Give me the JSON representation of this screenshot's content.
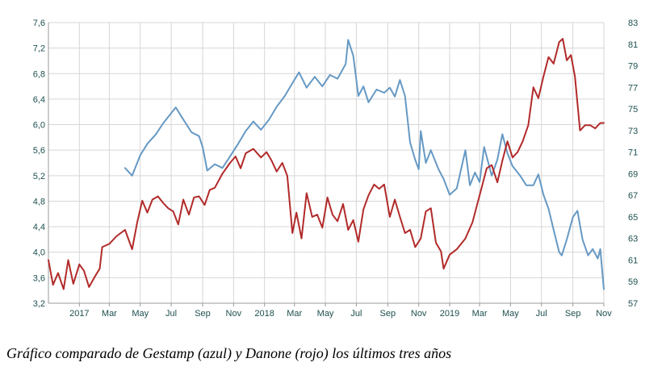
{
  "caption": "Gráfico comparado de Gestamp (azul) y Danone (rojo) los últimos tres años",
  "chart_data": {
    "type": "line",
    "title": "",
    "grid": true,
    "colors": {
      "gestamp": "#6699c4",
      "danone": "#b22a2a",
      "grid": "#d6d6d6",
      "tick_text": "#1d4f4f"
    },
    "x_ticks": [
      "2017",
      "Mar",
      "May",
      "Jul",
      "Sep",
      "Nov",
      "2018",
      "Mar",
      "May",
      "Jul",
      "Sep",
      "Nov",
      "2019",
      "Mar",
      "May",
      "Jul",
      "Sep",
      "Nov"
    ],
    "x_tick_dates": [
      "2017-01",
      "2017-03",
      "2017-05",
      "2017-07",
      "2017-09",
      "2017-11",
      "2018-01",
      "2018-03",
      "2018-05",
      "2018-07",
      "2018-09",
      "2018-11",
      "2019-01",
      "2019-03",
      "2019-05",
      "2019-07",
      "2019-09",
      "2019-11"
    ],
    "x_range": [
      "2016-11",
      "2019-11"
    ],
    "y_left": {
      "ticks": [
        "3,2",
        "3,6",
        "4,0",
        "4,4",
        "4,8",
        "5,2",
        "5,6",
        "6,0",
        "6,4",
        "6,8",
        "7,2",
        "7,6"
      ],
      "range": [
        3.2,
        7.6
      ]
    },
    "y_right": {
      "ticks": [
        "57",
        "59",
        "61",
        "63",
        "65",
        "67",
        "69",
        "71",
        "73",
        "75",
        "77",
        "79",
        "81",
        "83"
      ],
      "range": [
        57,
        83
      ]
    },
    "series": [
      {
        "key": "gestamp",
        "axis": "left",
        "points": [
          [
            "2017-04",
            5.32
          ],
          [
            "2017-04-15",
            5.2
          ],
          [
            "2017-05",
            5.52
          ],
          [
            "2017-05-15",
            5.7
          ],
          [
            "2017-06",
            5.85
          ],
          [
            "2017-06-15",
            6.02
          ],
          [
            "2017-07",
            6.18
          ],
          [
            "2017-07-10",
            6.27
          ],
          [
            "2017-07-25",
            6.08
          ],
          [
            "2017-08-10",
            5.88
          ],
          [
            "2017-08-25",
            5.82
          ],
          [
            "2017-09",
            5.65
          ],
          [
            "2017-09-10",
            5.28
          ],
          [
            "2017-09-25",
            5.38
          ],
          [
            "2017-10-10",
            5.32
          ],
          [
            "2017-10-25",
            5.5
          ],
          [
            "2017-11-10",
            5.7
          ],
          [
            "2017-11-25",
            5.9
          ],
          [
            "2017-12-10",
            6.05
          ],
          [
            "2017-12-25",
            5.92
          ],
          [
            "2018-01-10",
            6.08
          ],
          [
            "2018-01-25",
            6.28
          ],
          [
            "2018-02-10",
            6.45
          ],
          [
            "2018-02-25",
            6.65
          ],
          [
            "2018-03-10",
            6.82
          ],
          [
            "2018-03-25",
            6.58
          ],
          [
            "2018-04-10",
            6.75
          ],
          [
            "2018-04-25",
            6.6
          ],
          [
            "2018-05-10",
            6.78
          ],
          [
            "2018-05-25",
            6.72
          ],
          [
            "2018-06-10",
            6.95
          ],
          [
            "2018-06-15",
            7.33
          ],
          [
            "2018-06-25",
            7.08
          ],
          [
            "2018-07-05",
            6.45
          ],
          [
            "2018-07-15",
            6.6
          ],
          [
            "2018-07-25",
            6.35
          ],
          [
            "2018-08-10",
            6.55
          ],
          [
            "2018-08-25",
            6.5
          ],
          [
            "2018-09-05",
            6.58
          ],
          [
            "2018-09-15",
            6.44
          ],
          [
            "2018-09-25",
            6.7
          ],
          [
            "2018-10-05",
            6.45
          ],
          [
            "2018-10-15",
            5.72
          ],
          [
            "2018-10-25",
            5.45
          ],
          [
            "2018-11-01",
            5.3
          ],
          [
            "2018-11-05",
            5.9
          ],
          [
            "2018-11-15",
            5.4
          ],
          [
            "2018-11-25",
            5.6
          ],
          [
            "2018-12-10",
            5.3
          ],
          [
            "2018-12-20",
            5.15
          ],
          [
            "2019-01-01",
            4.9
          ],
          [
            "2019-01-15",
            5.0
          ],
          [
            "2019-02-01",
            5.6
          ],
          [
            "2019-02-10",
            5.05
          ],
          [
            "2019-02-20",
            5.25
          ],
          [
            "2019-03-01",
            5.1
          ],
          [
            "2019-03-10",
            5.65
          ],
          [
            "2019-03-25",
            5.2
          ],
          [
            "2019-04-05",
            5.45
          ],
          [
            "2019-04-15",
            5.85
          ],
          [
            "2019-04-25",
            5.55
          ],
          [
            "2019-05-05",
            5.35
          ],
          [
            "2019-05-20",
            5.2
          ],
          [
            "2019-06-01",
            5.05
          ],
          [
            "2019-06-15",
            5.05
          ],
          [
            "2019-06-25",
            5.22
          ],
          [
            "2019-07-05",
            4.9
          ],
          [
            "2019-07-15",
            4.68
          ],
          [
            "2019-07-25",
            4.35
          ],
          [
            "2019-08-05",
            4.0
          ],
          [
            "2019-08-10",
            3.95
          ],
          [
            "2019-08-20",
            4.2
          ],
          [
            "2019-09-01",
            4.55
          ],
          [
            "2019-09-10",
            4.65
          ],
          [
            "2019-09-20",
            4.2
          ],
          [
            "2019-10-01",
            3.95
          ],
          [
            "2019-10-10",
            4.05
          ],
          [
            "2019-10-20",
            3.9
          ],
          [
            "2019-10-25",
            4.05
          ],
          [
            "2019-11-01",
            3.42
          ]
        ]
      },
      {
        "key": "danone",
        "axis": "right",
        "points": [
          [
            "2016-11-01",
            61.0
          ],
          [
            "2016-11-10",
            58.7
          ],
          [
            "2016-11-20",
            59.8
          ],
          [
            "2016-12-01",
            58.3
          ],
          [
            "2016-12-10",
            61.0
          ],
          [
            "2016-12-20",
            58.8
          ],
          [
            "2017-01-01",
            60.6
          ],
          [
            "2017-01-10",
            60.0
          ],
          [
            "2017-01-20",
            58.5
          ],
          [
            "2017-02-01",
            59.5
          ],
          [
            "2017-02-10",
            60.2
          ],
          [
            "2017-02-15",
            62.2
          ],
          [
            "2017-03-01",
            62.5
          ],
          [
            "2017-03-15",
            63.2
          ],
          [
            "2017-04-01",
            63.8
          ],
          [
            "2017-04-15",
            62.0
          ],
          [
            "2017-04-25",
            64.5
          ],
          [
            "2017-05-05",
            66.5
          ],
          [
            "2017-05-15",
            65.4
          ],
          [
            "2017-05-25",
            66.6
          ],
          [
            "2017-06-05",
            66.9
          ],
          [
            "2017-06-15",
            66.3
          ],
          [
            "2017-06-25",
            65.8
          ],
          [
            "2017-07-05",
            65.5
          ],
          [
            "2017-07-15",
            64.3
          ],
          [
            "2017-07-25",
            66.6
          ],
          [
            "2017-08-05",
            65.2
          ],
          [
            "2017-08-15",
            66.8
          ],
          [
            "2017-08-25",
            66.9
          ],
          [
            "2017-09-05",
            66.1
          ],
          [
            "2017-09-15",
            67.5
          ],
          [
            "2017-09-25",
            67.7
          ],
          [
            "2017-10-10",
            69.0
          ],
          [
            "2017-10-25",
            70.0
          ],
          [
            "2017-11-05",
            70.6
          ],
          [
            "2017-11-15",
            69.5
          ],
          [
            "2017-11-25",
            70.9
          ],
          [
            "2017-12-10",
            71.3
          ],
          [
            "2017-12-25",
            70.5
          ],
          [
            "2018-01-05",
            71.0
          ],
          [
            "2018-01-15",
            70.2
          ],
          [
            "2018-01-25",
            69.2
          ],
          [
            "2018-02-05",
            70.0
          ],
          [
            "2018-02-15",
            68.8
          ],
          [
            "2018-02-25",
            63.5
          ],
          [
            "2018-03-05",
            65.4
          ],
          [
            "2018-03-15",
            63.0
          ],
          [
            "2018-03-25",
            67.2
          ],
          [
            "2018-04-05",
            65.0
          ],
          [
            "2018-04-15",
            65.2
          ],
          [
            "2018-04-25",
            64.0
          ],
          [
            "2018-05-05",
            66.8
          ],
          [
            "2018-05-15",
            65.2
          ],
          [
            "2018-05-25",
            64.6
          ],
          [
            "2018-06-05",
            66.2
          ],
          [
            "2018-06-15",
            63.8
          ],
          [
            "2018-06-25",
            64.7
          ],
          [
            "2018-07-05",
            62.7
          ],
          [
            "2018-07-15",
            65.7
          ],
          [
            "2018-07-25",
            67.0
          ],
          [
            "2018-08-05",
            68.0
          ],
          [
            "2018-08-15",
            67.6
          ],
          [
            "2018-08-25",
            68.0
          ],
          [
            "2018-09-05",
            65.0
          ],
          [
            "2018-09-15",
            66.6
          ],
          [
            "2018-09-25",
            65.0
          ],
          [
            "2018-10-05",
            63.5
          ],
          [
            "2018-10-15",
            63.8
          ],
          [
            "2018-10-25",
            62.2
          ],
          [
            "2018-11-05",
            63.0
          ],
          [
            "2018-11-15",
            65.5
          ],
          [
            "2018-11-25",
            65.8
          ],
          [
            "2018-12-05",
            62.6
          ],
          [
            "2018-12-15",
            61.8
          ],
          [
            "2018-12-20",
            60.2
          ],
          [
            "2019-01-01",
            61.5
          ],
          [
            "2019-01-15",
            62.0
          ],
          [
            "2019-02-01",
            63.0
          ],
          [
            "2019-02-15",
            64.5
          ],
          [
            "2019-03-01",
            67.0
          ],
          [
            "2019-03-15",
            69.5
          ],
          [
            "2019-03-25",
            69.8
          ],
          [
            "2019-04-05",
            68.2
          ],
          [
            "2019-04-15",
            70.2
          ],
          [
            "2019-04-25",
            72.0
          ],
          [
            "2019-05-05",
            70.5
          ],
          [
            "2019-05-15",
            71.0
          ],
          [
            "2019-05-25",
            72.0
          ],
          [
            "2019-06-05",
            73.5
          ],
          [
            "2019-06-15",
            77.0
          ],
          [
            "2019-06-25",
            76.0
          ],
          [
            "2019-07-05",
            78.0
          ],
          [
            "2019-07-15",
            79.8
          ],
          [
            "2019-07-25",
            79.2
          ],
          [
            "2019-08-05",
            81.2
          ],
          [
            "2019-08-12",
            81.5
          ],
          [
            "2019-08-20",
            79.5
          ],
          [
            "2019-08-28",
            80.0
          ],
          [
            "2019-09-05",
            78.0
          ],
          [
            "2019-09-15",
            73.0
          ],
          [
            "2019-09-25",
            73.5
          ],
          [
            "2019-10-05",
            73.5
          ],
          [
            "2019-10-15",
            73.2
          ],
          [
            "2019-10-25",
            73.7
          ],
          [
            "2019-11-01",
            73.7
          ]
        ]
      }
    ]
  }
}
